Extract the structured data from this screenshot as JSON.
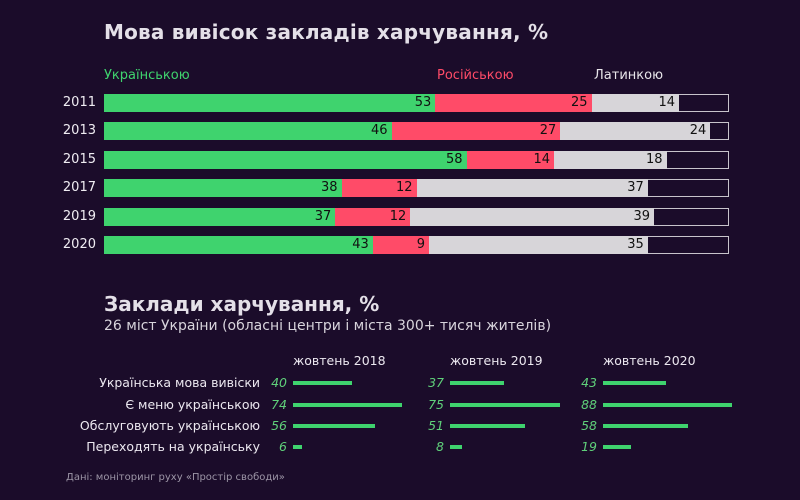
{
  "title": "Мова вивісок закладів харчування, %",
  "legend": [
    {
      "label": "Українською",
      "color": "#3fd36e"
    },
    {
      "label": "Російською",
      "color": "#ff4b68"
    },
    {
      "label": "Латинкою",
      "color": "#e8e6ea"
    }
  ],
  "colors": {
    "ukrainian": "#3fd36e",
    "russian": "#ff4b68",
    "latin": "#d7d5d9",
    "background": "#1b0c2a"
  },
  "chart_data": [
    {
      "type": "bar",
      "stacked": true,
      "orientation": "horizontal",
      "title": "Мова вивісок закладів харчування, %",
      "categories": [
        "2011",
        "2013",
        "2015",
        "2017",
        "2019",
        "2020"
      ],
      "series": [
        {
          "name": "Українською",
          "values": [
            53,
            46,
            58,
            38,
            37,
            43
          ]
        },
        {
          "name": "Російською",
          "values": [
            25,
            27,
            14,
            12,
            12,
            9
          ]
        },
        {
          "name": "Латинкою",
          "values": [
            14,
            24,
            18,
            37,
            39,
            35
          ]
        }
      ],
      "xlim": [
        0,
        100
      ]
    },
    {
      "type": "bar",
      "orientation": "horizontal",
      "title": "Заклади харчування, %",
      "subtitle": "26 міст України (обласні центри і міста 300+ тисяч жителів)",
      "categories": [
        "Українська мова вивіски",
        "Є меню українською",
        "Обслуговують українською",
        "Переходять на українську"
      ],
      "series": [
        {
          "name": "жовтень 2018",
          "values": [
            40,
            74,
            56,
            6
          ]
        },
        {
          "name": "жовтень 2019",
          "values": [
            37,
            75,
            51,
            8
          ]
        },
        {
          "name": "жовтень 2020",
          "values": [
            43,
            88,
            58,
            19
          ]
        }
      ]
    }
  ],
  "source": "Дані: моніторинг руху «Простір свободи»"
}
